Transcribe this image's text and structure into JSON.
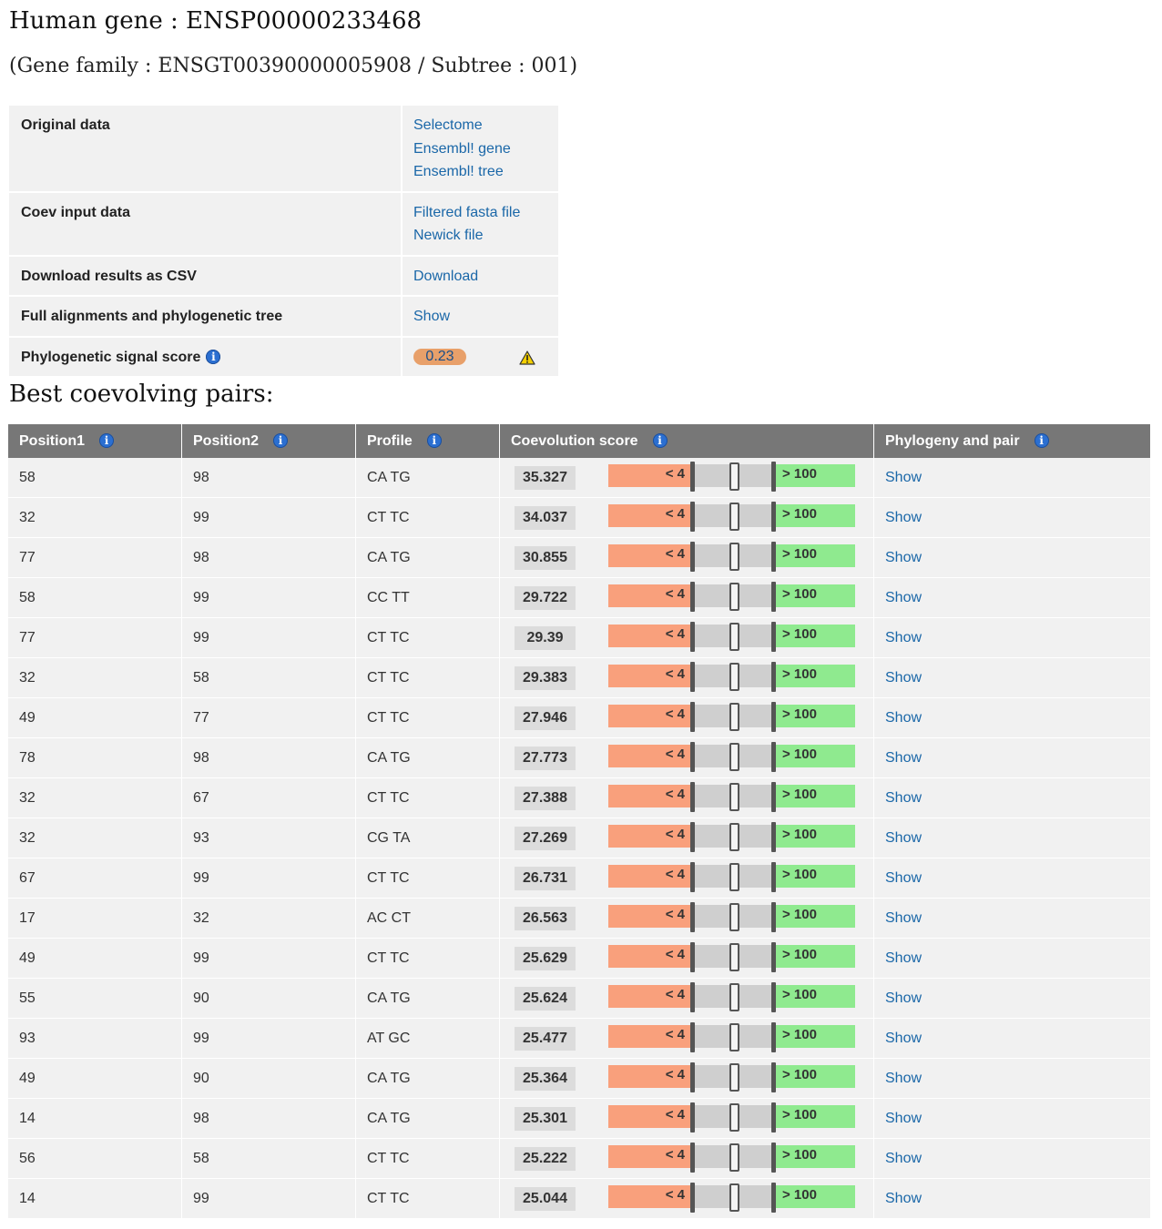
{
  "header": {
    "title": "Human gene : ENSP00000233468",
    "subtitle": "(Gene family : ENSGT00390000005908 / Subtree : 001)"
  },
  "info": [
    {
      "label": "Original data",
      "links": [
        "Selectome",
        "Ensembl! gene",
        "Ensembl! tree"
      ]
    },
    {
      "label": "Coev input data",
      "links": [
        "Filtered fasta file",
        "Newick file"
      ]
    },
    {
      "label": "Download results as CSV",
      "links": [
        "Download"
      ]
    },
    {
      "label": "Full alignments and phylogenetic tree",
      "links": [
        "Show"
      ]
    },
    {
      "label": "Phylogenetic signal score",
      "score": "0.23"
    }
  ],
  "pairs_section": {
    "title": "Best coevolving pairs:",
    "columns": [
      "Position1",
      "Position2",
      "Profile",
      "Coevolution score",
      "Phylogeny and pair"
    ],
    "range_low": "< 4",
    "range_high": "> 100",
    "link_label": "Show",
    "rows": [
      {
        "p1": "58",
        "p2": "98",
        "profile": "CA TG",
        "score": "35.327"
      },
      {
        "p1": "32",
        "p2": "99",
        "profile": "CT TC",
        "score": "34.037"
      },
      {
        "p1": "77",
        "p2": "98",
        "profile": "CA TG",
        "score": "30.855"
      },
      {
        "p1": "58",
        "p2": "99",
        "profile": "CC TT",
        "score": "29.722"
      },
      {
        "p1": "77",
        "p2": "99",
        "profile": "CT TC",
        "score": "29.39"
      },
      {
        "p1": "32",
        "p2": "58",
        "profile": "CT TC",
        "score": "29.383"
      },
      {
        "p1": "49",
        "p2": "77",
        "profile": "CT TC",
        "score": "27.946"
      },
      {
        "p1": "78",
        "p2": "98",
        "profile": "CA TG",
        "score": "27.773"
      },
      {
        "p1": "32",
        "p2": "67",
        "profile": "CT TC",
        "score": "27.388"
      },
      {
        "p1": "32",
        "p2": "93",
        "profile": "CG TA",
        "score": "27.269"
      },
      {
        "p1": "67",
        "p2": "99",
        "profile": "CT TC",
        "score": "26.731"
      },
      {
        "p1": "17",
        "p2": "32",
        "profile": "AC CT",
        "score": "26.563"
      },
      {
        "p1": "49",
        "p2": "99",
        "profile": "CT TC",
        "score": "25.629"
      },
      {
        "p1": "55",
        "p2": "90",
        "profile": "CA TG",
        "score": "25.624"
      },
      {
        "p1": "93",
        "p2": "99",
        "profile": "AT GC",
        "score": "25.477"
      },
      {
        "p1": "49",
        "p2": "90",
        "profile": "CA TG",
        "score": "25.364"
      },
      {
        "p1": "14",
        "p2": "98",
        "profile": "CA TG",
        "score": "25.301"
      },
      {
        "p1": "56",
        "p2": "58",
        "profile": "CT TC",
        "score": "25.222"
      },
      {
        "p1": "14",
        "p2": "99",
        "profile": "CT TC",
        "score": "25.044"
      }
    ]
  },
  "icons": {
    "info": "info-icon",
    "warning": "warning-icon"
  },
  "colors": {
    "link": "#1a67a8",
    "header_bg": "#777777",
    "low": "#f9a07c",
    "high": "#8fea8f",
    "score_pill": "#e8a06a"
  }
}
